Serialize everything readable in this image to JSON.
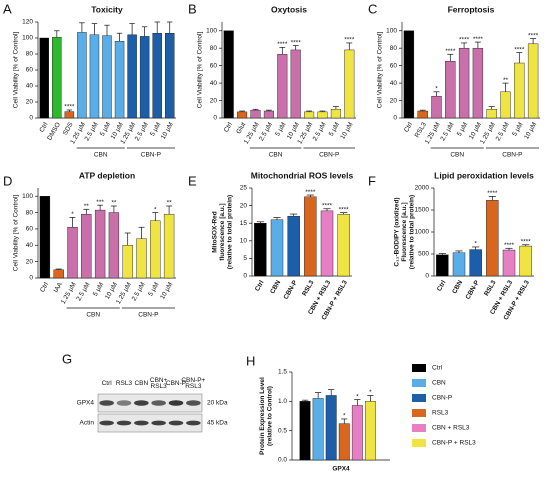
{
  "chart_data": [
    {
      "type": "bar",
      "panel": "A",
      "title": "Toxicity",
      "ylabel": [
        "Cell Viability [% of Control]"
      ],
      "categories": [
        "Ctrl",
        "DMSO",
        "SDS",
        "1.25 µM",
        "2.5 µM",
        "5 µM",
        "10 µM",
        "1.25 µM",
        "2.5 µM",
        "5 µM",
        "10 µM"
      ],
      "values": [
        100,
        101,
        8,
        107,
        104,
        103,
        96,
        104,
        102,
        106,
        106
      ],
      "errors": [
        0,
        8,
        2,
        12,
        14,
        13,
        10,
        14,
        12,
        14,
        14
      ],
      "significance": [
        null,
        null,
        "****",
        null,
        null,
        null,
        null,
        null,
        null,
        null,
        null
      ],
      "colors": [
        "#000000",
        "#2db82d",
        "#d9661f",
        "#5aaee8",
        "#5aaee8",
        "#5aaee8",
        "#5aaee8",
        "#1c5ea8",
        "#1c5ea8",
        "#1c5ea8",
        "#1c5ea8"
      ],
      "groups": [
        {
          "name": "CBN",
          "first": 3,
          "last": 6
        },
        {
          "name": "CBN-P",
          "first": 7,
          "last": 10
        }
      ],
      "ylim": [
        0,
        120
      ],
      "yticks": [
        0,
        20,
        40,
        60,
        80,
        100,
        120
      ]
    },
    {
      "type": "bar",
      "panel": "B",
      "title": "Oxytosis",
      "ylabel": [
        "Cell Viability [% of Control]"
      ],
      "categories": [
        "Ctrl",
        "Glut",
        "1.25 µM",
        "2.5 µM",
        "5 µM",
        "10 µM",
        "1.25 µM",
        "2.5 µM",
        "5 µM",
        "10 µM"
      ],
      "values": [
        100,
        7,
        9,
        8,
        73,
        78,
        7,
        7,
        10,
        78
      ],
      "errors": [
        0,
        1,
        1,
        1,
        8,
        5,
        1,
        1,
        3,
        8
      ],
      "significance": [
        null,
        null,
        null,
        null,
        "****",
        "****",
        null,
        null,
        null,
        "****"
      ],
      "colors": [
        "#000000",
        "#d9661f",
        "#c96fa9",
        "#c96fa9",
        "#c96fa9",
        "#c96fa9",
        "#f0e442",
        "#f0e442",
        "#f0e442",
        "#f0e442"
      ],
      "groups": [
        {
          "name": "CBN",
          "first": 2,
          "last": 5
        },
        {
          "name": "CBN-P",
          "first": 6,
          "last": 9
        }
      ],
      "ylim": [
        0,
        110
      ],
      "yticks": [
        0,
        20,
        40,
        60,
        80,
        100
      ]
    },
    {
      "type": "bar",
      "panel": "C",
      "title": "Ferroptosis",
      "ylabel": [
        "Cell Viability [% of Control]"
      ],
      "categories": [
        "Ctrl",
        "RSL3",
        "1.25 µM",
        "2.5 µM",
        "5 µM",
        "10 µM",
        "1.25 µM",
        "2.5 µM",
        "5 µM",
        "10 µM"
      ],
      "values": [
        100,
        8,
        25,
        65,
        80,
        80,
        10,
        30,
        63,
        85
      ],
      "errors": [
        0,
        1,
        5,
        8,
        6,
        7,
        3,
        10,
        12,
        6
      ],
      "significance": [
        null,
        null,
        "*",
        "****",
        "****",
        "****",
        null,
        "**",
        "****",
        "****"
      ],
      "colors": [
        "#000000",
        "#d9661f",
        "#c96fa9",
        "#c96fa9",
        "#c96fa9",
        "#c96fa9",
        "#f0e442",
        "#f0e442",
        "#f0e442",
        "#f0e442"
      ],
      "groups": [
        {
          "name": "CBN",
          "first": 2,
          "last": 5
        },
        {
          "name": "CBN-P",
          "first": 6,
          "last": 9
        }
      ],
      "ylim": [
        0,
        110
      ],
      "yticks": [
        0,
        20,
        40,
        60,
        80,
        100
      ]
    },
    {
      "type": "bar",
      "panel": "D",
      "title": "ATP depletion",
      "ylabel": [
        "Cell Viability [% of Control]"
      ],
      "categories": [
        "Ctrl",
        "IAA",
        "1.25 µM",
        "2.5 µM",
        "5 µM",
        "10 µM",
        "1.25 µM",
        "2.5 µM",
        "5 µM",
        "10 µM"
      ],
      "values": [
        100,
        10,
        62,
        78,
        83,
        80,
        40,
        48,
        70,
        78
      ],
      "errors": [
        0,
        1,
        12,
        6,
        6,
        8,
        15,
        14,
        10,
        10
      ],
      "significance": [
        null,
        null,
        "*",
        "**",
        "***",
        "**",
        null,
        null,
        "*",
        "**"
      ],
      "colors": [
        "#000000",
        "#d9661f",
        "#c96fa9",
        "#c96fa9",
        "#c96fa9",
        "#c96fa9",
        "#f0e442",
        "#f0e442",
        "#f0e442",
        "#f0e442"
      ],
      "groups": [
        {
          "name": "CBN",
          "first": 2,
          "last": 5
        },
        {
          "name": "CBN-P",
          "first": 6,
          "last": 9
        }
      ],
      "ylim": [
        0,
        110
      ],
      "yticks": [
        0,
        20,
        40,
        60,
        80,
        100
      ]
    },
    {
      "type": "bar",
      "panel": "E",
      "title": "Mitochondrial ROS levels",
      "ylabel": [
        "MitoSOX-Red",
        "fluorescence [a.u.]",
        "(relative to total protein)"
      ],
      "categories": [
        "Ctrl",
        "CBN",
        "CBN-P",
        "RSL3",
        "CBN + RSL3",
        "CBN-P + RSL3"
      ],
      "values": [
        15,
        16,
        17,
        22.5,
        18.5,
        17.5
      ],
      "errors": [
        0.4,
        0.6,
        0.6,
        0.5,
        0.6,
        0.5
      ],
      "significance": [
        null,
        null,
        null,
        "****",
        "****",
        "****"
      ],
      "colors": [
        "#000000",
        "#5aaee8",
        "#1c5ea8",
        "#d9661f",
        "#e77fc4",
        "#f0e442"
      ],
      "ylim": [
        0,
        25
      ],
      "yticks": [
        0,
        5,
        10,
        15,
        20,
        25
      ]
    },
    {
      "type": "bar",
      "panel": "F",
      "title": "Lipid peroxidation levels",
      "ylabel": [
        "C₁₁-BODIPY (oxidized)",
        "Fluorescence [a.u.]",
        "(relative to total protein)"
      ],
      "categories": [
        "Ctrl",
        "CBN",
        "CBN-P",
        "RSL3",
        "CBN + RSL3",
        "CBN-P + RSL3"
      ],
      "values": [
        480,
        530,
        600,
        1720,
        590,
        680
      ],
      "errors": [
        30,
        40,
        60,
        90,
        40,
        30
      ],
      "significance": [
        null,
        null,
        "*",
        "****",
        "****",
        "****"
      ],
      "colors": [
        "#000000",
        "#5aaee8",
        "#1c5ea8",
        "#d9661f",
        "#e77fc4",
        "#f0e442"
      ],
      "ylim": [
        0,
        2000
      ],
      "yticks": [
        0,
        500,
        1000,
        1500,
        2000
      ]
    },
    {
      "type": "bar",
      "panel": "H",
      "ylabel": [
        "Protein Expression Level",
        "(relative to Control)"
      ],
      "categories": [
        "GPX4"
      ],
      "series": [
        {
          "name": "Ctrl",
          "color": "#000000",
          "values": [
            1.0
          ],
          "errors": [
            0.02
          ],
          "significance": [
            null
          ]
        },
        {
          "name": "CBN",
          "color": "#5aaee8",
          "values": [
            1.05
          ],
          "errors": [
            0.1
          ],
          "significance": [
            null
          ]
        },
        {
          "name": "CBN-P",
          "color": "#1c5ea8",
          "values": [
            1.1
          ],
          "errors": [
            0.1
          ],
          "significance": [
            null
          ]
        },
        {
          "name": "RSL3",
          "color": "#d9661f",
          "values": [
            0.62
          ],
          "errors": [
            0.08
          ],
          "significance": [
            "*"
          ]
        },
        {
          "name": "CBN + RSL3",
          "color": "#e77fc4",
          "values": [
            0.93
          ],
          "errors": [
            0.1
          ],
          "significance": [
            "*"
          ]
        },
        {
          "name": "CBN-P + RSL3",
          "color": "#f0e442",
          "values": [
            1.0
          ],
          "errors": [
            0.1
          ],
          "significance": [
            "*"
          ]
        }
      ],
      "ylim": [
        0,
        1.5
      ],
      "yticks": [
        {
          "value": 0,
          "label": "0.0"
        },
        {
          "value": 0.5,
          "label": "0.5"
        },
        {
          "value": 1,
          "label": "1.0"
        },
        {
          "value": 1.5,
          "label": "1.5"
        }
      ]
    }
  ],
  "blot": {
    "panel": "G",
    "lanes": [
      "Ctrl",
      "RSL3",
      "CBN",
      "CBN+ RSL3",
      "CBN-P",
      "CBN-P+ RSL3"
    ],
    "rows": [
      {
        "name": "GPX4",
        "size": "20 kDa"
      },
      {
        "name": "Actin",
        "size": "45 kDa"
      }
    ]
  }
}
